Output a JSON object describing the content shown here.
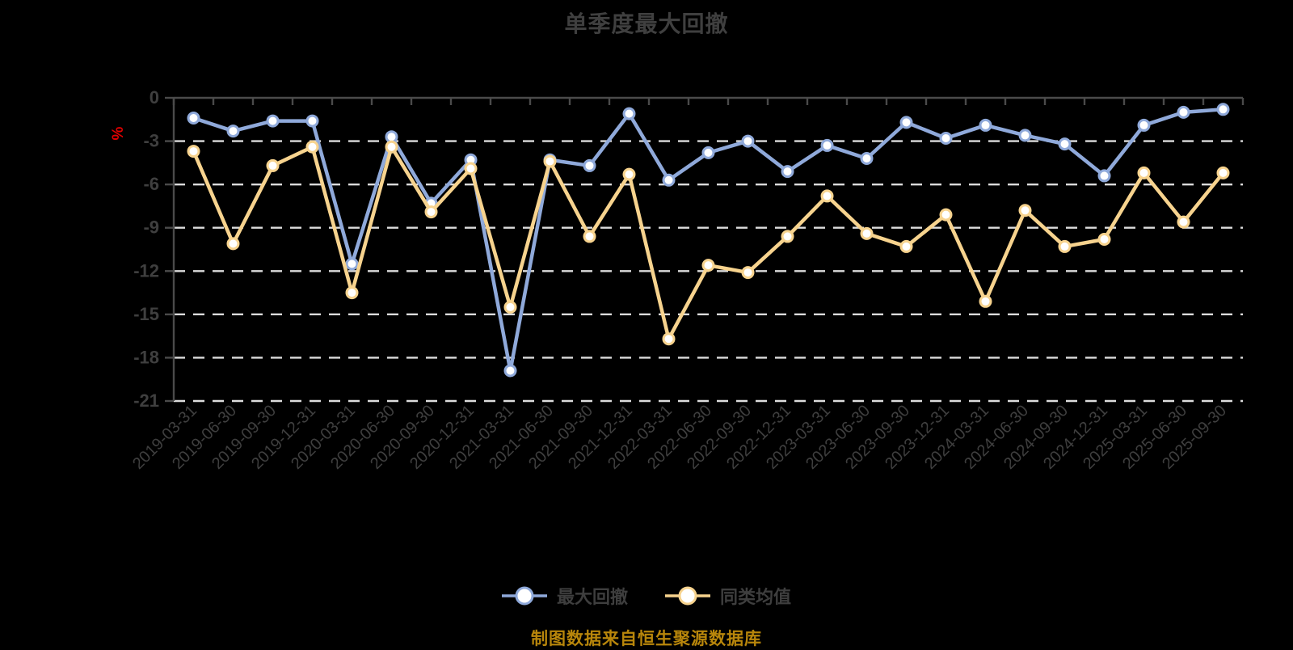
{
  "title": "单季度最大回撤",
  "caption": "制图数据来自恒生聚源数据库",
  "colors": {
    "background": "#000000",
    "text": "#3F3F3F",
    "axis": "#4A4A4A",
    "gridline": "#DCDCDC",
    "marker_fill": "#FFFFFF",
    "unit_label": "#E00000",
    "caption_gold": "#B8860B",
    "series_blue": "#8FA9DA",
    "series_yellow": "#F7D38E"
  },
  "chart_data": {
    "type": "line",
    "title": "单季度最大回撤",
    "unit": "%",
    "grid": true,
    "legend_position": "bottom",
    "ylim": [
      -21,
      0
    ],
    "y_ticks": [
      0,
      -3,
      -6,
      -9,
      -12,
      -15,
      -18,
      -21
    ],
    "categories": [
      "2019-03-31",
      "2019-06-30",
      "2019-09-30",
      "2019-12-31",
      "2020-03-31",
      "2020-06-30",
      "2020-09-30",
      "2020-12-31",
      "2021-03-31",
      "2021-06-30",
      "2021-09-30",
      "2021-12-31",
      "2022-03-31",
      "2022-06-30",
      "2022-09-30",
      "2022-12-31",
      "2023-03-31",
      "2023-06-30",
      "2023-09-30",
      "2023-12-31",
      "2024-03-31",
      "2024-06-30",
      "2024-09-30",
      "2024-12-31",
      "2025-03-31",
      "2025-06-30",
      "2025-09-30"
    ],
    "series": [
      {
        "name": "最大回撤",
        "color": "#8FA9DA",
        "values": [
          -1.4,
          -2.3,
          -1.6,
          -1.6,
          -11.5,
          -2.7,
          -7.3,
          -4.3,
          -18.9,
          -4.3,
          -4.7,
          -1.1,
          -5.7,
          -3.8,
          -3.0,
          -5.1,
          -3.3,
          -4.2,
          -1.7,
          -2.8,
          -1.9,
          -2.6,
          -3.2,
          -5.4,
          -1.9,
          -1.0,
          -0.8
        ]
      },
      {
        "name": "同类均值",
        "color": "#F7D38E",
        "values": [
          -3.7,
          -10.1,
          -4.7,
          -3.4,
          -13.5,
          -3.4,
          -7.9,
          -4.9,
          -14.5,
          -4.4,
          -9.6,
          -5.3,
          -16.7,
          -11.6,
          -12.1,
          -9.6,
          -6.8,
          -9.4,
          -10.3,
          -8.1,
          -14.1,
          -7.8,
          -10.3,
          -9.8,
          -5.2,
          -8.6,
          -5.2
        ]
      }
    ]
  }
}
